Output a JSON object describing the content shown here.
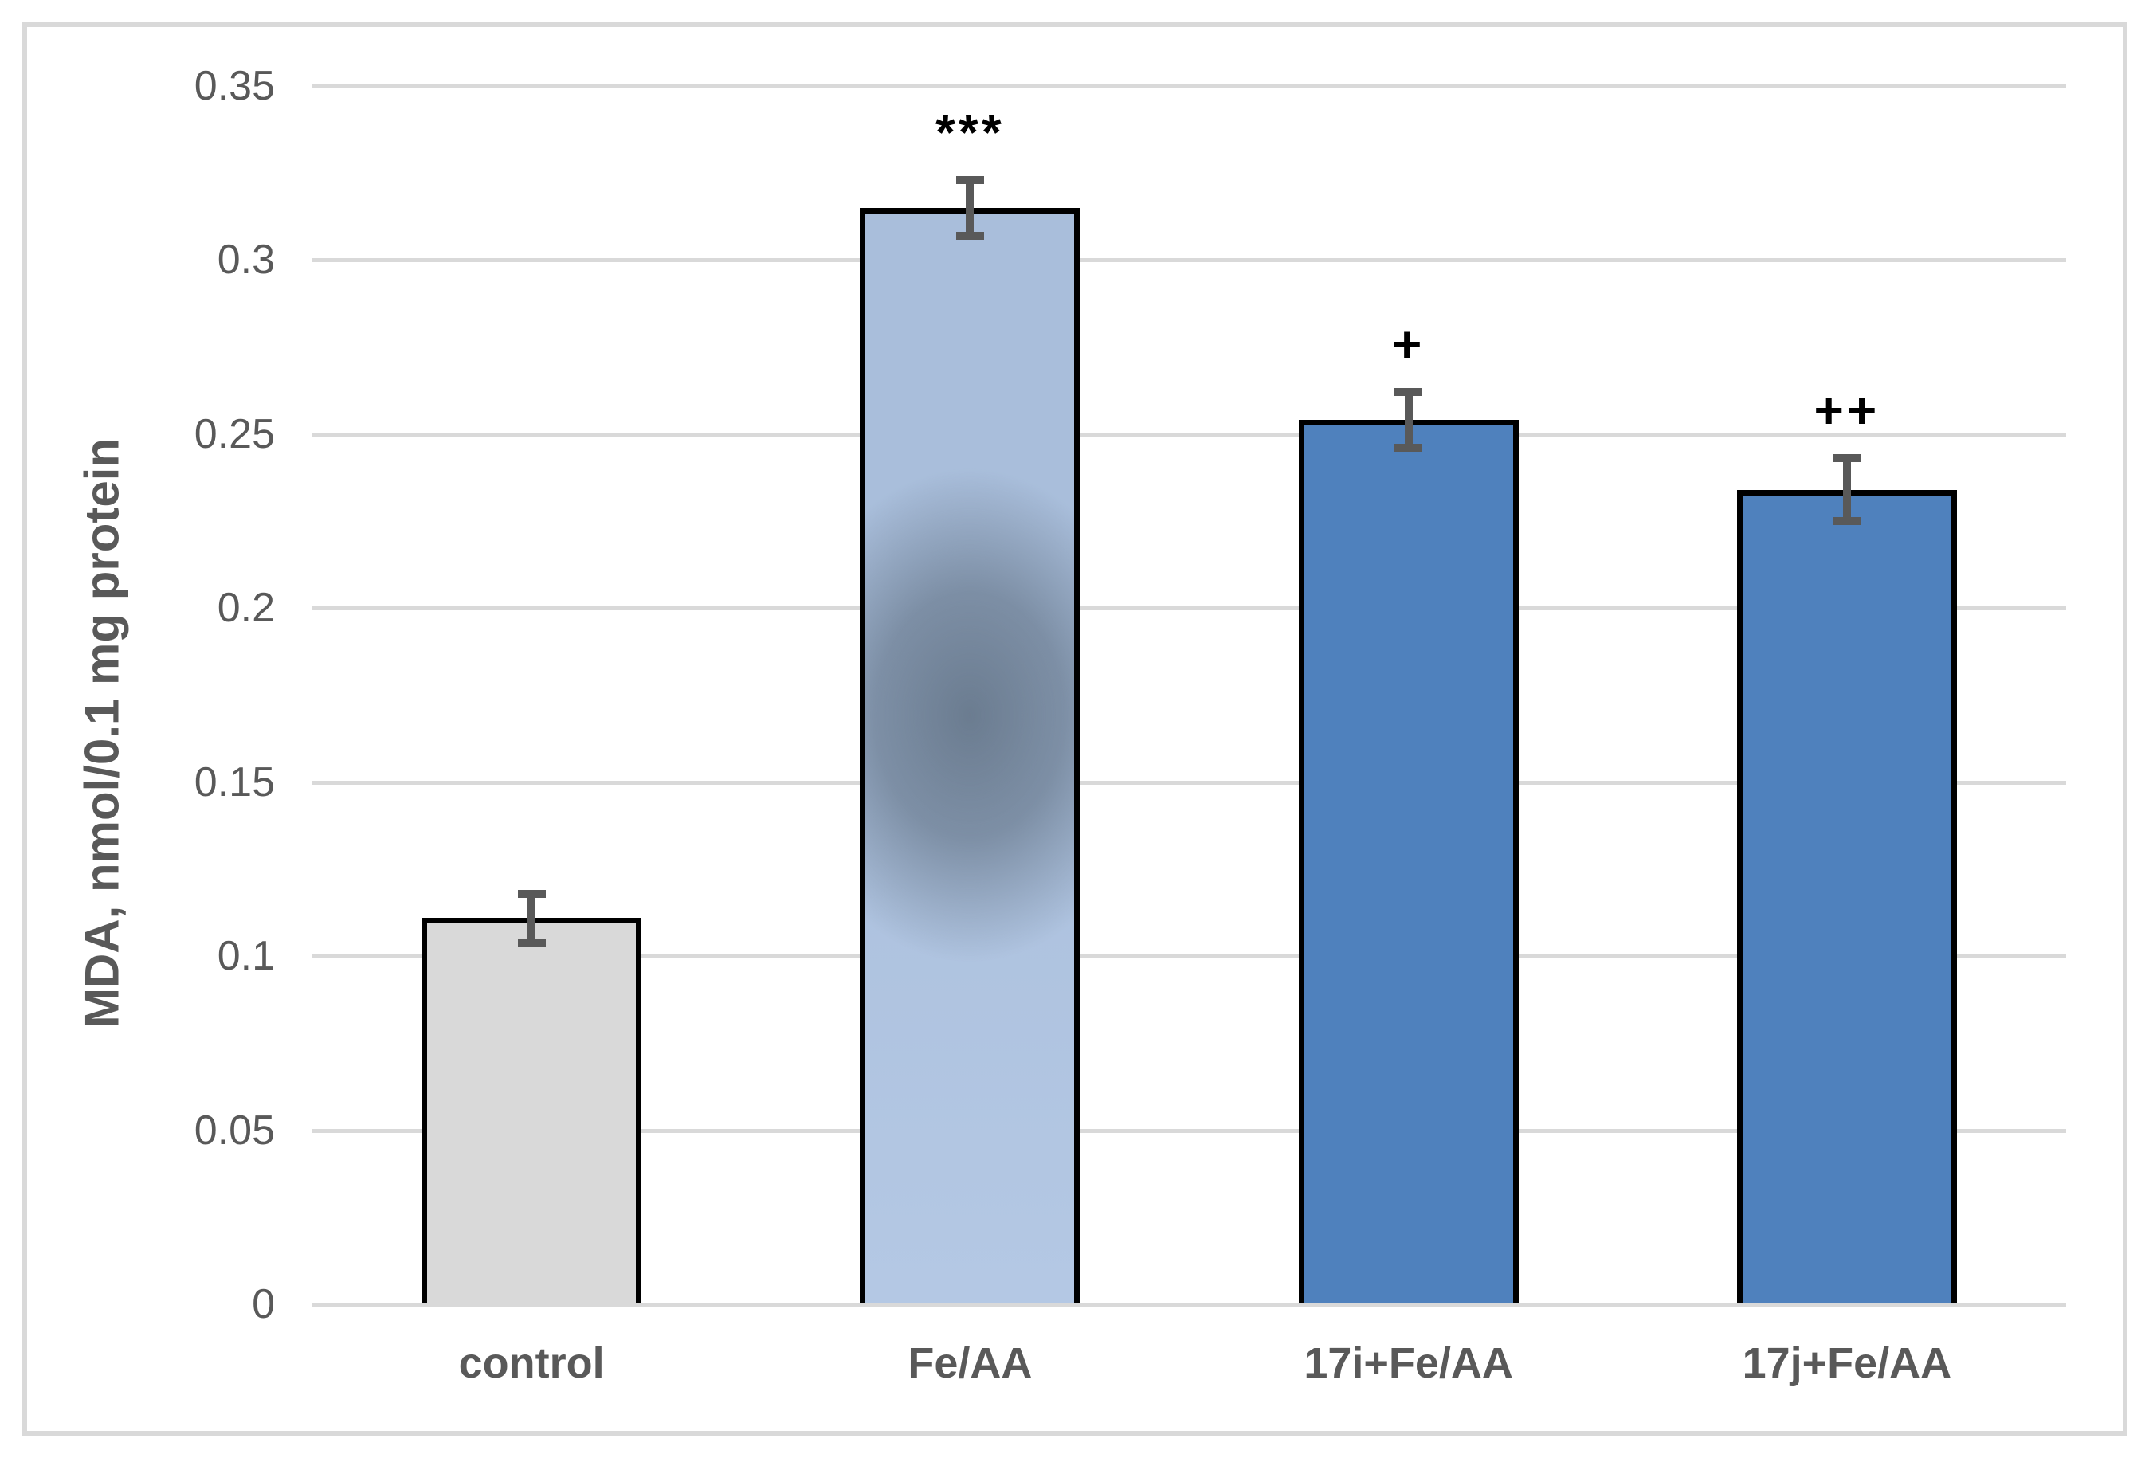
{
  "chart_data": {
    "type": "bar",
    "title": "",
    "xlabel": "",
    "ylabel": "MDA, nmol/0.1 mg protein",
    "ylim": [
      0,
      0.35
    ],
    "ytick_step": 0.05,
    "ytick_labels": [
      "0",
      "0.05",
      "0.1",
      "0.15",
      "0.2",
      "0.25",
      "0.3",
      "0.35"
    ],
    "categories": [
      "control",
      "Fe/AA",
      "17i+Fe/AA",
      "17j+Fe/AA"
    ],
    "values": [
      0.111,
      0.315,
      0.254,
      0.234
    ],
    "errors": [
      0.007,
      0.008,
      0.008,
      0.009
    ],
    "annotations": [
      "",
      "***",
      "+",
      "++"
    ],
    "grid": true,
    "legend": false,
    "bar_fill_keys": [
      "control",
      "feaa",
      "treated",
      "treated"
    ]
  },
  "colors": {
    "background": "#ffffff",
    "chart_border": "#d9d9d9",
    "gridline": "#d9d9d9",
    "axis_line": "#d9d9d9",
    "tick_label": "#595959",
    "category_label": "#595959",
    "y_title": "#595959",
    "bar_border": "#000000",
    "error_bar": "#595959",
    "annotation": "#000000",
    "control_fill": "#d9d9d9",
    "treated_fill": "#4f81bd",
    "feaa_fill_top": "#a9bedb",
    "feaa_fill_bottom": "#b4c8e4",
    "feaa_blur_center": "#6b7c90"
  }
}
